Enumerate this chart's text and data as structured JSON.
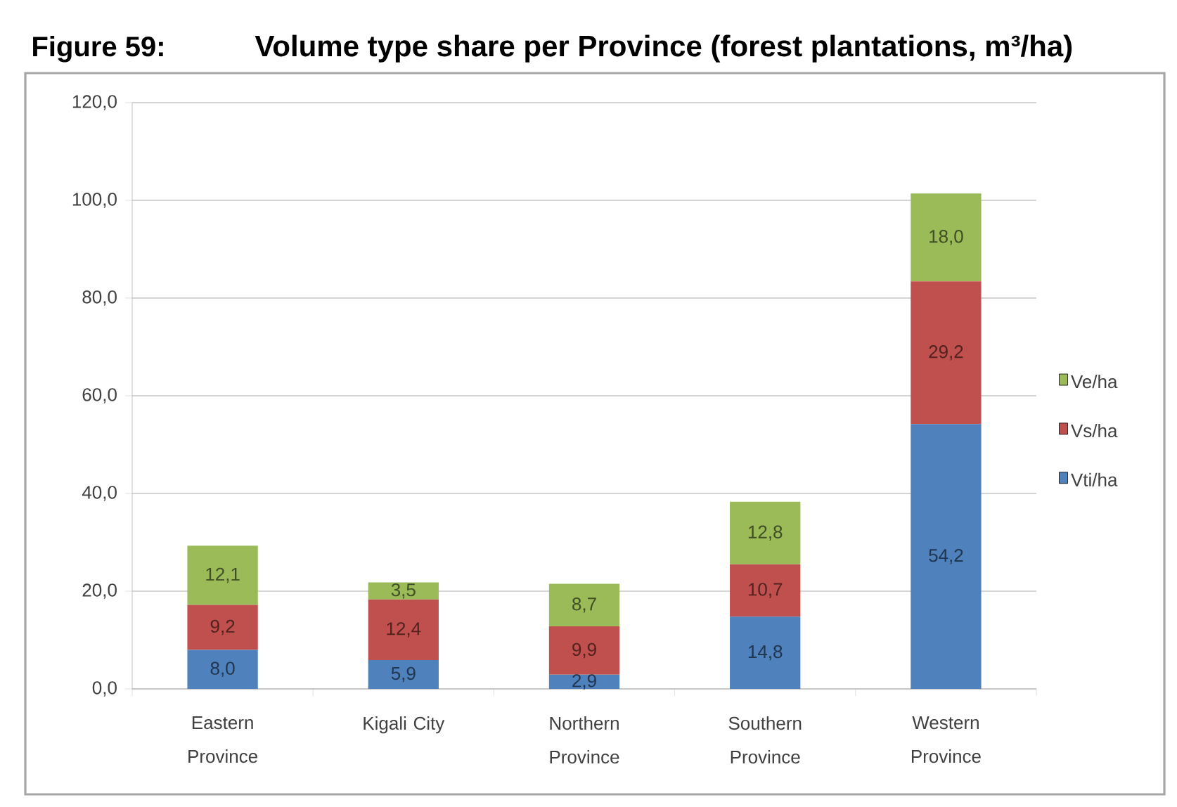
{
  "chart_data": {
    "type": "bar",
    "stacked": true,
    "title": "Volume type share per Province (forest plantations, m³/ha)",
    "annotations": [
      "Figure 59:"
    ],
    "categories": [
      "Eastern Province",
      "Kigali City",
      "Northern Province",
      "Southern Province",
      "Western Province"
    ],
    "series": [
      {
        "name": "Vti/ha",
        "color": "#4f81bd",
        "values": [
          8.0,
          5.9,
          2.9,
          14.8,
          54.2
        ],
        "value_labels": [
          "8,0",
          "5,9",
          "2,9",
          "14,8",
          "54,2"
        ]
      },
      {
        "name": "Vs/ha",
        "color": "#c0504d",
        "values": [
          9.2,
          12.4,
          9.9,
          10.7,
          29.2
        ],
        "value_labels": [
          "9,2",
          "12,4",
          "9,9",
          "10,7",
          "29,2"
        ]
      },
      {
        "name": "Ve/ha",
        "color": "#9bbb59",
        "values": [
          12.1,
          3.5,
          8.7,
          12.8,
          18.0
        ],
        "value_labels": [
          "12,1",
          "3,5",
          "8,7",
          "12,8",
          "18,0"
        ]
      }
    ],
    "ylim": [
      0,
      120
    ],
    "yticks": [
      {
        "value": 0,
        "label": "0,0"
      },
      {
        "value": 20,
        "label": "20,0"
      },
      {
        "value": 40,
        "label": "40,0"
      },
      {
        "value": 60,
        "label": "60,0"
      },
      {
        "value": 80,
        "label": "80,0"
      },
      {
        "value": 100,
        "label": "100,0"
      },
      {
        "value": 120,
        "label": "120,0"
      }
    ],
    "grid": "y",
    "legend": "right"
  }
}
